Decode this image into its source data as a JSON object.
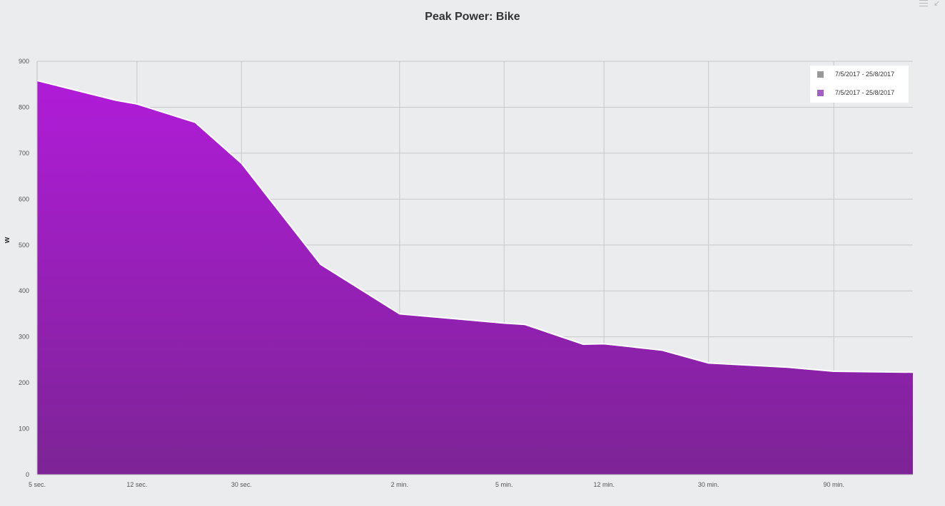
{
  "chart_data": {
    "type": "area",
    "title": "Peak Power: Bike",
    "xlabel": "",
    "ylabel": "w",
    "ylim": [
      0,
      900
    ],
    "y_ticks": [
      "0",
      "100",
      "200",
      "300",
      "400",
      "500",
      "600",
      "700",
      "800",
      "900"
    ],
    "x_scale": "log",
    "x_unit": "seconds",
    "x_ticks": [
      {
        "value": 5,
        "label": "5 sec."
      },
      {
        "value": 12,
        "label": "12 sec."
      },
      {
        "value": 30,
        "label": "30 sec."
      },
      {
        "value": 120,
        "label": "2 min."
      },
      {
        "value": 300,
        "label": "5 min."
      },
      {
        "value": 720,
        "label": "12 min."
      },
      {
        "value": 1800,
        "label": "30 min."
      },
      {
        "value": 5400,
        "label": "90 min."
      }
    ],
    "xlim": [
      5,
      10800
    ],
    "grid": true,
    "legend_position": "top-right",
    "legend": [
      {
        "label": "7/5/2017 - 25/8/2017",
        "color": "#999999"
      },
      {
        "label": "7/5/2017 - 25/8/2017",
        "color": "#a45fc6"
      }
    ],
    "series": [
      {
        "color": "#a81fd0",
        "x": [
          5,
          10,
          12,
          20,
          30,
          60,
          120,
          300,
          360,
          600,
          720,
          1200,
          1800,
          3600,
          5400,
          10800
        ],
        "y": [
          858,
          815,
          807,
          767,
          678,
          458,
          350,
          330,
          327,
          284,
          285,
          271,
          243,
          234,
          225,
          223
        ]
      }
    ]
  },
  "toolbar": {
    "menu_icon": "menu-icon",
    "collapse_icon": "collapse-icon"
  }
}
